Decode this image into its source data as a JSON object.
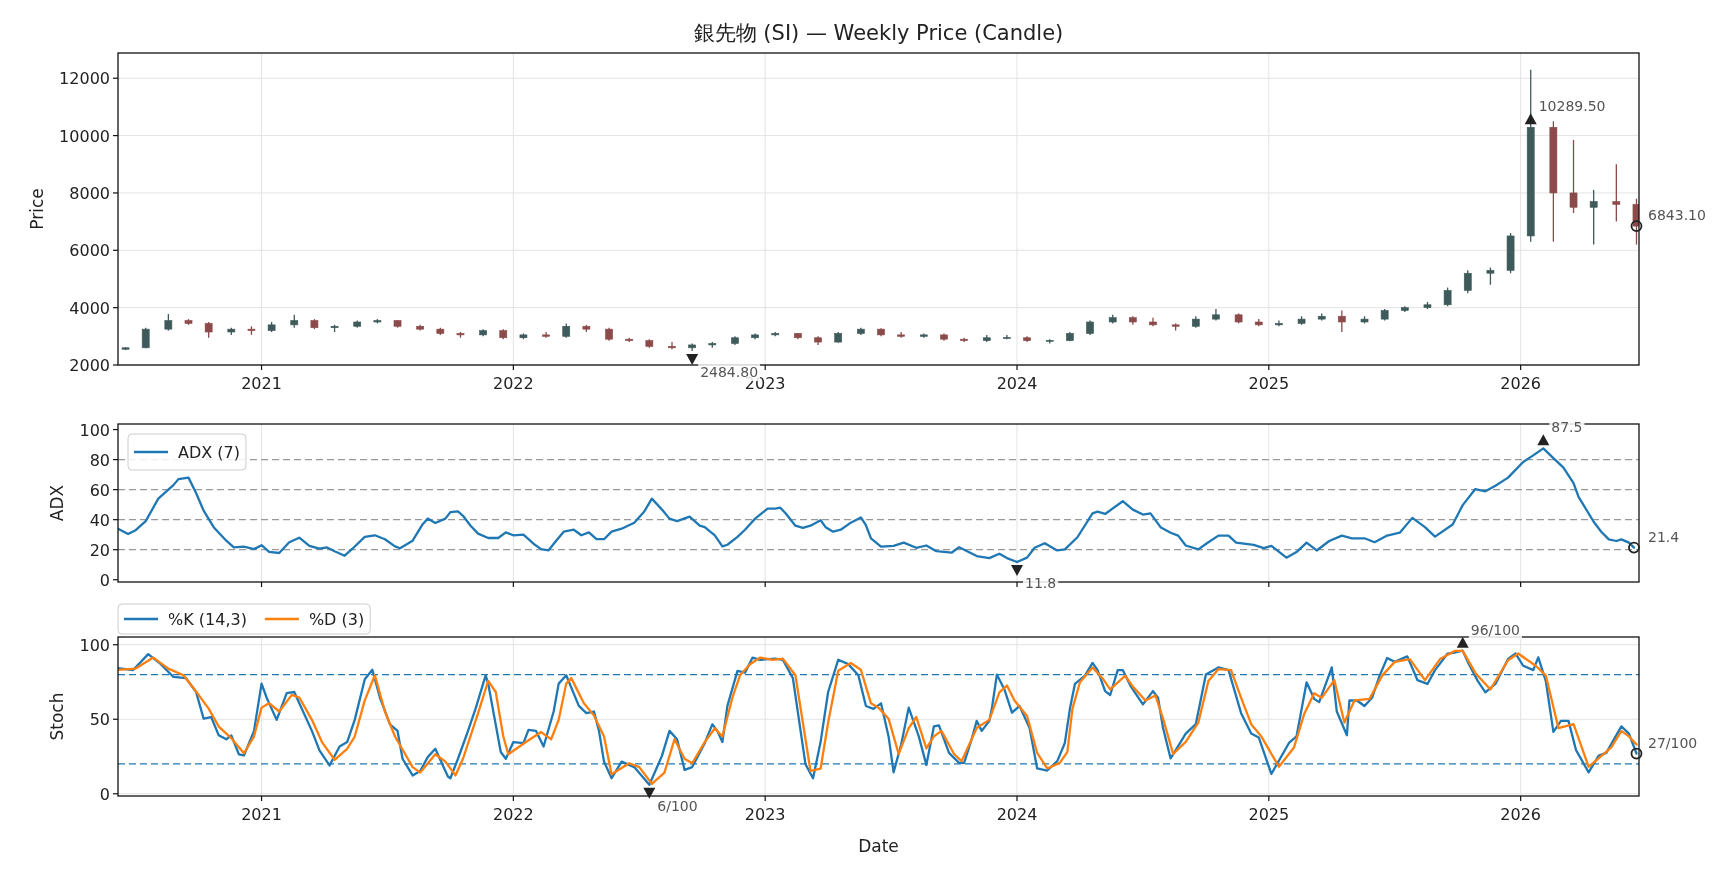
{
  "chart_data": [
    {
      "type": "candlestick",
      "title": "銀先物 (SI) — Weekly Price (Candle)",
      "ylabel": "Price",
      "colors": [
        "#3f5a5a",
        "#3f5a5a",
        "#3f5a5a",
        "#8c4a4a",
        "#8c4a4a",
        "#3f5a5a",
        "#8c4a4a",
        "#3f5a5a",
        "#3f5a5a",
        "#8c4a4a",
        "#3f5a5a",
        "#3f5a5a",
        "#3f5a5a",
        "#8c4a4a",
        "#8c4a4a",
        "#8c4a4a",
        "#8c4a4a",
        "#3f5a5a",
        "#8c4a4a",
        "#3f5a5a",
        "#8c4a4a",
        "#3f5a5a",
        "#8c4a4a",
        "#8c4a4a",
        "#8c4a4a",
        "#8c4a4a",
        "#8c4a4a",
        "#3f5a5a",
        "#3f5a5a",
        "#3f5a5a",
        "#3f5a5a",
        "#3f5a5a",
        "#8c4a4a",
        "#8c4a4a",
        "#3f5a5a",
        "#3f5a5a",
        "#8c4a4a",
        "#8c4a4a",
        "#3f5a5a",
        "#8c4a4a",
        "#8c4a4a",
        "#3f5a5a",
        "#3f5a5a",
        "#8c4a4a",
        "#3f5a5a",
        "#3f5a5a",
        "#3f5a5a",
        "#3f5a5a",
        "#8c4a4a",
        "#8c4a4a",
        "#8c4a4a",
        "#3f5a5a",
        "#3f5a5a",
        "#8c4a4a",
        "#8c4a4a",
        "#3f5a5a",
        "#3f5a5a",
        "#3f5a5a",
        "#8c4a4a",
        "#3f5a5a",
        "#3f5a5a",
        "#3f5a5a",
        "#3f5a5a",
        "#3f5a5a",
        "#3f5a5a",
        "#3f5a5a",
        "#3f5a5a",
        "#3f5a5a",
        "#8c4a4a",
        "#8c4a4a",
        "#3f5a5a",
        "#8c4a4a",
        "#8c4a4a"
      ],
      "x": [
        2020.46,
        2020.54,
        2020.63,
        2020.71,
        2020.79,
        2020.88,
        2020.96,
        2021.04,
        2021.13,
        2021.21,
        2021.29,
        2021.38,
        2021.46,
        2021.54,
        2021.63,
        2021.71,
        2021.79,
        2021.88,
        2021.96,
        2022.04,
        2022.13,
        2022.21,
        2022.29,
        2022.38,
        2022.46,
        2022.54,
        2022.63,
        2022.71,
        2022.79,
        2022.88,
        2022.96,
        2023.04,
        2023.13,
        2023.21,
        2023.29,
        2023.38,
        2023.46,
        2023.54,
        2023.63,
        2023.71,
        2023.79,
        2023.88,
        2023.96,
        2024.04,
        2024.13,
        2024.21,
        2024.29,
        2024.38,
        2024.46,
        2024.54,
        2024.63,
        2024.71,
        2024.79,
        2024.88,
        2024.96,
        2025.04,
        2025.13,
        2025.21,
        2025.29,
        2025.38,
        2025.46,
        2025.54,
        2025.63,
        2025.71,
        2025.79,
        2025.88,
        2025.96,
        2026.04,
        2026.13,
        2026.21,
        2026.29,
        2026.38,
        2026.46
      ],
      "ohlc": [
        [
          2550,
          2620,
          2520,
          2600
        ],
        [
          2600,
          3300,
          2580,
          3250
        ],
        [
          3250,
          3780,
          3200,
          3550
        ],
        [
          3550,
          3600,
          3400,
          3450
        ],
        [
          3450,
          3500,
          2950,
          3150
        ],
        [
          3150,
          3300,
          3050,
          3250
        ],
        [
          3250,
          3350,
          3050,
          3200
        ],
        [
          3200,
          3500,
          3150,
          3400
        ],
        [
          3400,
          3750,
          3300,
          3550
        ],
        [
          3550,
          3600,
          3250,
          3300
        ],
        [
          3300,
          3400,
          3150,
          3350
        ],
        [
          3350,
          3550,
          3300,
          3500
        ],
        [
          3500,
          3600,
          3450,
          3550
        ],
        [
          3550,
          3560,
          3300,
          3350
        ],
        [
          3350,
          3400,
          3200,
          3250
        ],
        [
          3250,
          3300,
          3050,
          3100
        ],
        [
          3100,
          3150,
          2950,
          3050
        ],
        [
          3050,
          3250,
          3000,
          3200
        ],
        [
          3200,
          3250,
          2900,
          2950
        ],
        [
          2950,
          3100,
          2900,
          3050
        ],
        [
          3050,
          3150,
          2950,
          3000
        ],
        [
          3000,
          3450,
          2950,
          3350
        ],
        [
          3350,
          3400,
          3150,
          3250
        ],
        [
          3250,
          3300,
          2850,
          2900
        ],
        [
          2900,
          2950,
          2800,
          2850
        ],
        [
          2850,
          2900,
          2600,
          2650
        ],
        [
          2650,
          2800,
          2550,
          2600
        ],
        [
          2600,
          2750,
          2484.8,
          2700
        ],
        [
          2700,
          2800,
          2600,
          2750
        ],
        [
          2750,
          3000,
          2700,
          2950
        ],
        [
          2950,
          3100,
          2900,
          3050
        ],
        [
          3050,
          3150,
          3000,
          3100
        ],
        [
          3100,
          3120,
          2900,
          2950
        ],
        [
          2950,
          3000,
          2700,
          2800
        ],
        [
          2800,
          3150,
          2780,
          3100
        ],
        [
          3100,
          3300,
          3050,
          3250
        ],
        [
          3250,
          3280,
          3000,
          3050
        ],
        [
          3050,
          3150,
          2950,
          3000
        ],
        [
          3000,
          3100,
          2950,
          3050
        ],
        [
          3050,
          3100,
          2850,
          2900
        ],
        [
          2900,
          2950,
          2800,
          2850
        ],
        [
          2850,
          3050,
          2800,
          2950
        ],
        [
          2950,
          3050,
          2900,
          2960
        ],
        [
          2950,
          3000,
          2800,
          2850
        ],
        [
          2850,
          2900,
          2750,
          2860
        ],
        [
          2850,
          3150,
          2830,
          3100
        ],
        [
          3100,
          3550,
          3050,
          3500
        ],
        [
          3500,
          3750,
          3450,
          3650
        ],
        [
          3650,
          3700,
          3400,
          3500
        ],
        [
          3500,
          3650,
          3350,
          3400
        ],
        [
          3400,
          3450,
          3200,
          3350
        ],
        [
          3350,
          3700,
          3300,
          3600
        ],
        [
          3600,
          3950,
          3550,
          3750
        ],
        [
          3750,
          3800,
          3450,
          3500
        ],
        [
          3500,
          3600,
          3350,
          3400
        ],
        [
          3400,
          3550,
          3350,
          3450
        ],
        [
          3450,
          3700,
          3400,
          3600
        ],
        [
          3600,
          3800,
          3550,
          3700
        ],
        [
          3700,
          3900,
          3150,
          3500
        ],
        [
          3500,
          3700,
          3450,
          3600
        ],
        [
          3600,
          3950,
          3550,
          3900
        ],
        [
          3900,
          4050,
          3850,
          4000
        ],
        [
          4000,
          4200,
          3950,
          4100
        ],
        [
          4100,
          4700,
          4050,
          4600
        ],
        [
          4600,
          5300,
          4500,
          5200
        ],
        [
          5200,
          5400,
          4800,
          5300
        ],
        [
          5300,
          6600,
          5200,
          6500
        ],
        [
          6500,
          12300,
          6300,
          10289.5
        ],
        [
          10289.5,
          10500,
          6300,
          8000
        ],
        [
          8000,
          9850,
          7300,
          7500
        ],
        [
          7500,
          8100,
          6200,
          7700
        ],
        [
          7700,
          9000,
          7000,
          7600
        ],
        [
          7600,
          7800,
          6200,
          6843.1
        ]
      ],
      "xlim": [
        2020.43,
        2026.47
      ],
      "xticks": [
        2021,
        2022,
        2023,
        2024,
        2025,
        2026
      ],
      "ylim": [
        2000,
        12880
      ],
      "yticks": [
        2000,
        4000,
        6000,
        8000,
        10000,
        12000
      ],
      "grid": true,
      "annotations": [
        {
          "text": "2484.80",
          "x": 2022.71,
          "y": 2484.8
        },
        {
          "text": "10289.50",
          "x": 2026.04,
          "y": 10289.5
        },
        {
          "text": "6843.10",
          "x": 2026.46,
          "y": 6843.1
        }
      ]
    },
    {
      "type": "line",
      "ylabel": "ADX",
      "xlim": [
        2020.43,
        2026.47
      ],
      "xticks": [
        2021,
        2022,
        2023,
        2024,
        2025,
        2026
      ],
      "ylim": [
        -1.5,
        103.7
      ],
      "yticks": [
        0,
        20,
        40,
        60,
        80,
        100
      ],
      "tick_labels": "y",
      "grid": "x",
      "legend": "top left",
      "series": [
        {
          "name": "ADX (7)",
          "color": "#1f77b4",
          "x": [
            2020.43,
            2020.47,
            2020.5,
            2020.54,
            2020.59,
            2020.65,
            2020.67,
            2020.71,
            2020.74,
            2020.77,
            2020.81,
            2020.86,
            2020.89,
            2020.93,
            2020.97,
            2021.0,
            2021.03,
            2021.07,
            2021.11,
            2021.15,
            2021.19,
            2021.23,
            2021.26,
            2021.29,
            2021.33,
            2021.36,
            2021.41,
            2021.45,
            2021.49,
            2021.53,
            2021.55,
            2021.6,
            2021.64,
            2021.66,
            2021.69,
            2021.73,
            2021.75,
            2021.78,
            2021.8,
            2021.83,
            2021.86,
            2021.9,
            2021.94,
            2021.97,
            2022.0,
            2022.04,
            2022.08,
            2022.11,
            2022.14,
            2022.17,
            2022.2,
            2022.24,
            2022.27,
            2022.3,
            2022.33,
            2022.36,
            2022.39,
            2022.43,
            2022.48,
            2022.52,
            2022.55,
            2022.59,
            2022.62,
            2022.65,
            2022.7,
            2022.74,
            2022.76,
            2022.8,
            2022.83,
            2022.85,
            2022.89,
            2022.92,
            2022.96,
            2023.01,
            2023.04,
            2023.06,
            2023.08,
            2023.12,
            2023.15,
            2023.18,
            2023.22,
            2023.24,
            2023.27,
            2023.3,
            2023.34,
            2023.38,
            2023.4,
            2023.42,
            2023.46,
            2023.51,
            2023.55,
            2023.6,
            2023.64,
            2023.68,
            2023.74,
            2023.77,
            2023.84,
            2023.89,
            2023.93,
            2023.96,
            2024.0,
            2024.04,
            2024.07,
            2024.11,
            2024.16,
            2024.19,
            2024.24,
            2024.3,
            2024.32,
            2024.35,
            2024.42,
            2024.46,
            2024.5,
            2024.53,
            2024.57,
            2024.61,
            2024.64,
            2024.67,
            2024.72,
            2024.76,
            2024.8,
            2024.84,
            2024.87,
            2024.94,
            2024.98,
            2025.01,
            2025.07,
            2025.11,
            2025.15,
            2025.19,
            2025.24,
            2025.29,
            2025.33,
            2025.38,
            2025.42,
            2025.47,
            2025.52,
            2025.57,
            2025.62,
            2025.66,
            2025.73,
            2025.77,
            2025.82,
            2025.86,
            2025.9,
            2025.95,
            2026.01,
            2026.05,
            2026.09,
            2026.13,
            2026.17,
            2026.21,
            2026.23,
            2026.29,
            2026.32,
            2026.35,
            2026.38,
            2026.4,
            2026.43,
            2026.45
          ],
          "values": [
            34,
            30.4,
            33,
            39,
            54,
            63,
            67,
            68,
            57.8,
            46,
            35,
            26,
            21.5,
            22,
            20.4,
            23,
            18.5,
            17.8,
            25,
            28,
            22.6,
            20.7,
            21.5,
            19,
            16,
            20.5,
            28.5,
            29.6,
            27,
            22.2,
            21,
            26,
            37,
            40.7,
            37.8,
            40.7,
            45,
            45.5,
            42.6,
            36,
            30.7,
            27.8,
            27.8,
            31.5,
            29.6,
            30,
            24,
            20.4,
            19.6,
            26,
            32,
            33.3,
            29.6,
            31.5,
            27,
            27,
            32,
            34,
            38,
            45.5,
            54,
            46.7,
            40.7,
            39,
            42,
            36,
            35,
            29.6,
            22.2,
            23.3,
            28.5,
            33.3,
            40.7,
            47.4,
            47.4,
            48,
            44.4,
            36,
            34.5,
            36,
            39.6,
            35,
            32,
            33.3,
            38,
            41.5,
            36.3,
            27.6,
            22,
            22.5,
            24.7,
            21.3,
            22.8,
            19,
            18,
            21.7,
            15.8,
            14.4,
            17.3,
            14.4,
            11.8,
            14.7,
            21.3,
            24.3,
            19.5,
            20.2,
            28.3,
            44.2,
            45.3,
            43.8,
            52.3,
            46.7,
            43.4,
            44.2,
            35,
            31.3,
            29.4,
            22.8,
            20.2,
            25,
            29.4,
            29.4,
            24.7,
            23.2,
            21,
            22.5,
            14.7,
            18.4,
            24.7,
            19.5,
            25.8,
            29.4,
            27.6,
            27.6,
            25,
            29.4,
            31.3,
            41.2,
            35,
            28.7,
            36.8,
            49.7,
            60.4,
            58.9,
            62.6,
            68,
            78.4,
            82.8,
            87.5,
            81,
            74.7,
            64.4,
            55.2,
            38.6,
            32,
            26.9,
            25.8,
            26.9,
            24.7,
            21.4
          ]
        }
      ],
      "ref_lines": [
        {
          "axis": "y",
          "value": 20,
          "color": "#999999",
          "line_style": "dashed"
        },
        {
          "axis": "y",
          "value": 40,
          "color": "#999999",
          "line_style": "dashed"
        },
        {
          "axis": "y",
          "value": 60,
          "color": "#999999",
          "line_style": "dashed"
        },
        {
          "axis": "y",
          "value": 80,
          "color": "#999999",
          "line_style": "dashed"
        }
      ],
      "annotations": [
        {
          "text": "87.5",
          "x": 2026.09,
          "y": 87.5
        },
        {
          "text": "11.8",
          "x": 2024.0,
          "y": 11.8
        },
        {
          "text": "21.4",
          "x": 2026.45,
          "y": 21.4
        }
      ]
    },
    {
      "type": "line",
      "ylabel": "Stoch",
      "xlabel": "Date",
      "xlim": [
        2020.43,
        2026.47
      ],
      "xticks": [
        2021,
        2022,
        2023,
        2024,
        2025,
        2026
      ],
      "ylim": [
        -1.5,
        105.2
      ],
      "yticks": [
        0,
        50,
        100
      ],
      "grid": true,
      "legend": "top left",
      "series": [
        {
          "name": "%K (14,3)",
          "color": "#1f77b4",
          "x": [
            2020.43,
            2020.49,
            2020.55,
            2020.6,
            2020.65,
            2020.7,
            2020.74,
            2020.77,
            2020.8,
            2020.83,
            2020.86,
            2020.88,
            2020.91,
            2020.93,
            2020.97,
            2021.0,
            2021.02,
            2021.06,
            2021.1,
            2021.13,
            2021.15,
            2021.2,
            2021.23,
            2021.27,
            2021.31,
            2021.34,
            2021.37,
            2021.41,
            2021.44,
            2021.47,
            2021.51,
            2021.54,
            2021.56,
            2021.6,
            2021.63,
            2021.66,
            2021.69,
            2021.74,
            2021.75,
            2021.78,
            2021.82,
            2021.85,
            2021.89,
            2021.9,
            2021.95,
            2021.97,
            2022.0,
            2022.04,
            2022.06,
            2022.09,
            2022.12,
            2022.16,
            2022.18,
            2022.21,
            2022.26,
            2022.29,
            2022.32,
            2022.34,
            2022.36,
            2022.39,
            2022.43,
            2022.48,
            2022.54,
            2022.59,
            2022.62,
            2022.65,
            2022.68,
            2022.71,
            2022.76,
            2022.79,
            2022.81,
            2022.83,
            2022.85,
            2022.89,
            2022.92,
            2022.95,
            2022.98,
            2023.04,
            2023.07,
            2023.11,
            2023.16,
            2023.19,
            2023.22,
            2023.25,
            2023.29,
            2023.33,
            2023.37,
            2023.4,
            2023.43,
            2023.46,
            2023.49,
            2023.51,
            2023.54,
            2023.57,
            2023.61,
            2023.64,
            2023.67,
            2023.69,
            2023.73,
            2023.77,
            2023.79,
            2023.82,
            2023.84,
            2023.86,
            2023.89,
            2023.9,
            2023.92,
            2023.95,
            2023.98,
            2024.01,
            2024.05,
            2024.08,
            2024.12,
            2024.16,
            2024.19,
            2024.21,
            2024.23,
            2024.27,
            2024.3,
            2024.32,
            2024.35,
            2024.37,
            2024.4,
            2024.42,
            2024.45,
            2024.5,
            2024.54,
            2024.56,
            2024.58,
            2024.61,
            2024.64,
            2024.67,
            2024.71,
            2024.75,
            2024.8,
            2024.84,
            2024.89,
            2024.93,
            2024.96,
            2025.01,
            2025.08,
            2025.11,
            2025.15,
            2025.18,
            2025.2,
            2025.25,
            2025.27,
            2025.31,
            2025.32,
            2025.35,
            2025.38,
            2025.41,
            2025.44,
            2025.47,
            2025.5,
            2025.55,
            2025.59,
            2025.63,
            2025.66,
            2025.71,
            2025.74,
            2025.77,
            2025.79,
            2025.83,
            2025.86,
            2025.9,
            2025.95,
            2025.98,
            2026.01,
            2026.05,
            2026.07,
            2026.1,
            2026.13,
            2026.16,
            2026.19,
            2026.22,
            2026.27,
            2026.31,
            2026.34,
            2026.4,
            2026.43,
            2026.46
          ],
          "values": [
            84.3,
            83,
            93.7,
            87,
            78.4,
            77.6,
            68.3,
            50.4,
            51.5,
            39.2,
            36.6,
            39.2,
            26.5,
            25.7,
            42,
            73.9,
            64.6,
            49.6,
            67.5,
            68.3,
            60.8,
            42.2,
            29.1,
            19,
            31.7,
            34.7,
            49.6,
            76.9,
            83.2,
            64.6,
            46.6,
            42.2,
            23.5,
            12.3,
            15.3,
            24.6,
            30.2,
            11.6,
            10.4,
            23.5,
            42.2,
            57.1,
            79.5,
            73.9,
            28,
            23.5,
            34.7,
            34,
            42.9,
            42.2,
            31.7,
            55.2,
            73.9,
            79.5,
            59,
            54.1,
            55.2,
            42.2,
            21.6,
            10.4,
            21.6,
            17.9,
            6,
            25.4,
            42.2,
            36.6,
            16,
            17.9,
            34,
            46.6,
            42.2,
            34.7,
            59,
            82.5,
            81.3,
            91.4,
            89.9,
            90.7,
            89.9,
            77.6,
            19.8,
            10.4,
            34.7,
            68.3,
            89.9,
            87,
            79.5,
            58.9,
            57,
            60.7,
            38.5,
            14.4,
            33,
            57.8,
            38.5,
            19.3,
            45.2,
            45.9,
            27.4,
            20.7,
            20.7,
            36.7,
            48.9,
            42.2,
            48.9,
            57,
            80,
            70,
            54.4,
            58.9,
            44.1,
            17,
            15.6,
            21.9,
            34.1,
            57,
            73.7,
            79.3,
            87.8,
            83,
            68.9,
            66.3,
            83,
            83,
            72.6,
            60,
            68.9,
            64.4,
            44.1,
            23.7,
            31.9,
            40.4,
            46.7,
            80,
            84.8,
            83,
            54.1,
            40.4,
            37.8,
            13.3,
            34.1,
            38.5,
            74.8,
            63.7,
            61.5,
            84.8,
            55.2,
            39.3,
            62.6,
            62.6,
            58.9,
            64.4,
            79.3,
            91.1,
            88.5,
            92.2,
            76.3,
            73.7,
            83,
            94.1,
            94.8,
            96,
            88.5,
            75.6,
            68.1,
            73.7,
            90.4,
            94.1,
            85.9,
            83,
            91.5,
            75.6,
            41.5,
            48.9,
            48.9,
            29.3,
            14.4,
            25.6,
            27.4,
            45.2,
            40.4,
            27
          ]
        },
        {
          "name": "%D (3)",
          "color": "#ff7f0e",
          "x": [
            2020.43,
            2020.5,
            2020.57,
            2020.63,
            2020.69,
            2020.75,
            2020.79,
            2020.83,
            2020.88,
            2020.93,
            2020.97,
            2021.0,
            2021.03,
            2021.07,
            2021.12,
            2021.15,
            2021.2,
            2021.24,
            2021.29,
            2021.34,
            2021.37,
            2021.41,
            2021.45,
            2021.49,
            2021.53,
            2021.6,
            2021.63,
            2021.69,
            2021.73,
            2021.77,
            2021.8,
            2021.86,
            2021.9,
            2021.93,
            2021.96,
            2021.98,
            2022.05,
            2022.11,
            2022.15,
            2022.18,
            2022.21,
            2022.23,
            2022.28,
            2022.32,
            2022.36,
            2022.39,
            2022.46,
            2022.5,
            2022.55,
            2022.6,
            2022.64,
            2022.68,
            2022.71,
            2022.76,
            2022.8,
            2022.83,
            2022.87,
            2022.9,
            2022.94,
            2022.98,
            2023.03,
            2023.07,
            2023.12,
            2023.18,
            2023.22,
            2023.25,
            2023.29,
            2023.34,
            2023.38,
            2023.42,
            2023.45,
            2023.49,
            2023.53,
            2023.57,
            2023.6,
            2023.64,
            2023.67,
            2023.7,
            2023.75,
            2023.78,
            2023.84,
            2023.89,
            2023.93,
            2023.96,
            2023.99,
            2024.04,
            2024.08,
            2024.12,
            2024.17,
            2024.2,
            2024.22,
            2024.25,
            2024.3,
            2024.34,
            2024.37,
            2024.43,
            2024.46,
            2024.51,
            2024.55,
            2024.58,
            2024.62,
            2024.67,
            2024.72,
            2024.76,
            2024.8,
            2024.85,
            2024.89,
            2024.93,
            2024.97,
            2025.04,
            2025.1,
            2025.14,
            2025.18,
            2025.21,
            2025.26,
            2025.3,
            2025.34,
            2025.4,
            2025.45,
            2025.5,
            2025.56,
            2025.62,
            2025.68,
            2025.74,
            2025.77,
            2025.82,
            2025.88,
            2025.95,
            2025.99,
            2026.06,
            2026.1,
            2026.15,
            2026.21,
            2026.27,
            2026.33,
            2026.36,
            2026.4,
            2026.43,
            2026.46
          ],
          "values": [
            83.2,
            84,
            91.4,
            84,
            79.5,
            66.4,
            57.1,
            45.1,
            37.3,
            27.2,
            38.4,
            57.8,
            60.8,
            55.2,
            66.4,
            64.6,
            49.6,
            34.7,
            22.8,
            30.2,
            38.4,
            62.7,
            79.5,
            55.2,
            38.4,
            17.9,
            14.2,
            26.5,
            21.6,
            12.3,
            23.5,
            54.1,
            75.7,
            68.3,
            38.4,
            26.5,
            34.7,
            41.4,
            36.6,
            49.6,
            73.9,
            77.6,
            60.8,
            52.6,
            38.4,
            13.1,
            20.5,
            17.9,
            6.7,
            14.2,
            36.6,
            23.5,
            20.5,
            34.7,
            44,
            38.4,
            64.6,
            79.5,
            86.9,
            91.4,
            89.9,
            90.7,
            79.5,
            15.3,
            16.8,
            47.8,
            82.5,
            87.7,
            83.2,
            60.7,
            57.8,
            50.4,
            26.7,
            44.1,
            51.5,
            30.4,
            38.5,
            42.2,
            26.7,
            21.9,
            44.1,
            49.6,
            68.1,
            72.6,
            62.6,
            52.2,
            27.4,
            17,
            20.7,
            28.1,
            57,
            74.8,
            84.8,
            77.4,
            70,
            79.3,
            71.9,
            62.6,
            65.9,
            50.4,
            26.7,
            34.8,
            47.8,
            75.6,
            83.7,
            83,
            64.4,
            46.7,
            38.5,
            18.1,
            31.1,
            53.3,
            67.4,
            64.4,
            76.3,
            47.8,
            62.6,
            63.7,
            79.3,
            88.5,
            90.4,
            76.3,
            90.4,
            95.9,
            95.9,
            81.1,
            70,
            89.6,
            94.1,
            85.9,
            79.3,
            44.1,
            46.7,
            18.1,
            26.7,
            31.1,
            42.2,
            38.5,
            33
          ]
        }
      ],
      "ref_lines": [
        {
          "axis": "y",
          "value": 20,
          "color": "#1f77b4",
          "line_style": "dashed"
        },
        {
          "axis": "y",
          "value": 80,
          "color": "#1f77b4",
          "line_style": "dashed"
        }
      ],
      "annotations": [
        {
          "text": "6/100",
          "x": 2022.54,
          "y": 6
        },
        {
          "text": "96/100",
          "x": 2025.77,
          "y": 96
        },
        {
          "text": "27/100",
          "x": 2026.46,
          "y": 27
        }
      ]
    }
  ]
}
